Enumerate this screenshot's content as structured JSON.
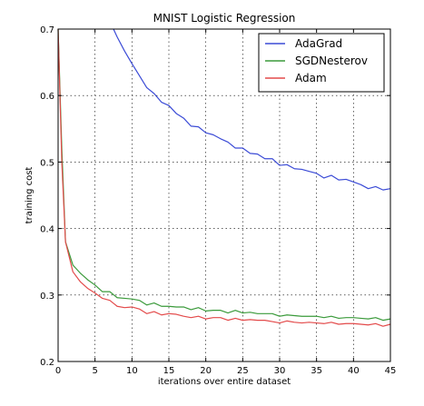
{
  "chart_data": {
    "type": "line",
    "title": "MNIST Logistic Regression",
    "xlabel": "iterations over entire dataset",
    "ylabel": "training cost",
    "xlim": [
      0,
      45
    ],
    "ylim": [
      0.2,
      0.7
    ],
    "xticks": [
      0,
      5,
      10,
      15,
      20,
      25,
      30,
      35,
      40,
      45
    ],
    "yticks": [
      0.2,
      0.3,
      0.4,
      0.5,
      0.6,
      0.7
    ],
    "grid": true,
    "legend": "top-right",
    "series": [
      {
        "name": "AdaGrad",
        "color": "#3b4bd6",
        "x": [
          7.5,
          8,
          9,
          10,
          11,
          12,
          13,
          14,
          15,
          16,
          17,
          18,
          19,
          20,
          21,
          22,
          23,
          24,
          25,
          26,
          27,
          28,
          29,
          30,
          31,
          32,
          33,
          34,
          35,
          36,
          37,
          38,
          39,
          40,
          41,
          42,
          43,
          44,
          45
        ],
        "y": [
          0.7,
          0.688,
          0.667,
          0.648,
          0.63,
          0.612,
          0.603,
          0.59,
          0.585,
          0.573,
          0.566,
          0.554,
          0.553,
          0.544,
          0.541,
          0.535,
          0.53,
          0.521,
          0.521,
          0.513,
          0.512,
          0.505,
          0.505,
          0.495,
          0.496,
          0.49,
          0.489,
          0.486,
          0.483,
          0.476,
          0.48,
          0.473,
          0.474,
          0.47,
          0.466,
          0.46,
          0.463,
          0.458,
          0.46
        ]
      },
      {
        "name": "SGDNesterov",
        "color": "#3a9a3a",
        "x": [
          0,
          0.5,
          1,
          2,
          3,
          4,
          5,
          6,
          7,
          8,
          9,
          10,
          11,
          12,
          13,
          14,
          15,
          16,
          17,
          18,
          19,
          20,
          21,
          22,
          23,
          24,
          25,
          26,
          27,
          28,
          29,
          30,
          31,
          32,
          33,
          34,
          35,
          36,
          37,
          38,
          39,
          40,
          41,
          42,
          43,
          44,
          45
        ],
        "y": [
          0.7,
          0.52,
          0.38,
          0.345,
          0.333,
          0.323,
          0.315,
          0.305,
          0.305,
          0.296,
          0.295,
          0.294,
          0.292,
          0.285,
          0.288,
          0.283,
          0.283,
          0.282,
          0.282,
          0.278,
          0.281,
          0.276,
          0.277,
          0.277,
          0.273,
          0.277,
          0.273,
          0.274,
          0.272,
          0.272,
          0.272,
          0.268,
          0.27,
          0.269,
          0.268,
          0.268,
          0.268,
          0.266,
          0.268,
          0.265,
          0.266,
          0.266,
          0.265,
          0.264,
          0.266,
          0.262,
          0.264
        ]
      },
      {
        "name": "Adam",
        "color": "#e34a4a",
        "x": [
          0,
          0.5,
          1,
          2,
          3,
          4,
          5,
          6,
          7,
          8,
          9,
          10,
          11,
          12,
          13,
          14,
          15,
          16,
          17,
          18,
          19,
          20,
          21,
          22,
          23,
          24,
          25,
          26,
          27,
          28,
          29,
          30,
          31,
          32,
          33,
          34,
          35,
          36,
          37,
          38,
          39,
          40,
          41,
          42,
          43,
          44,
          45
        ],
        "y": [
          0.7,
          0.5,
          0.38,
          0.335,
          0.32,
          0.31,
          0.303,
          0.295,
          0.292,
          0.283,
          0.281,
          0.282,
          0.279,
          0.272,
          0.275,
          0.27,
          0.272,
          0.271,
          0.268,
          0.266,
          0.268,
          0.264,
          0.266,
          0.266,
          0.262,
          0.265,
          0.262,
          0.263,
          0.262,
          0.262,
          0.26,
          0.258,
          0.261,
          0.259,
          0.258,
          0.259,
          0.258,
          0.257,
          0.259,
          0.256,
          0.257,
          0.257,
          0.256,
          0.255,
          0.257,
          0.253,
          0.256
        ]
      }
    ]
  }
}
